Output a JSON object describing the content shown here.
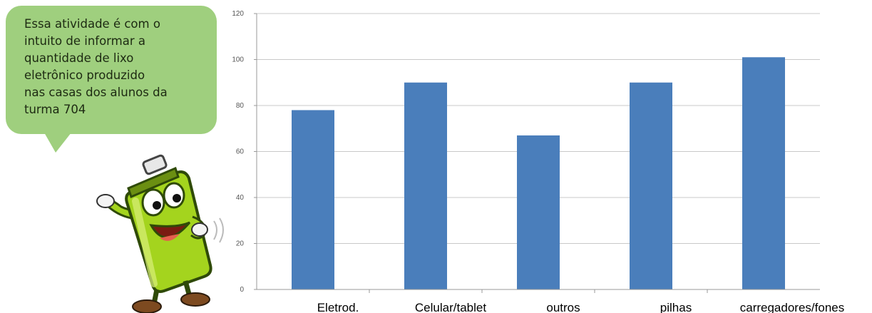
{
  "callout": {
    "lines": [
      "Essa atividade é com o",
      "intuito de informar a",
      "quantidade de lixo",
      "eletrônico produzido",
      "nas casas dos alunos da",
      "turma 704"
    ]
  },
  "mascot": {
    "icon": "battery-mascot-icon",
    "body_color": "#a4d41e",
    "outline_color": "#2f4a08"
  },
  "chart_data": {
    "type": "bar",
    "categories": [
      "Eletrod.",
      "Celular/tablet",
      "outros",
      "pilhas",
      "carregadores/fones"
    ],
    "values": [
      78,
      90,
      67,
      90,
      101
    ],
    "ylim": [
      0,
      120
    ],
    "yticks": [
      0,
      20,
      40,
      60,
      80,
      100,
      120
    ],
    "grid": true,
    "bar_color": "#4a7ebb",
    "grid_color": "#c9c9c9"
  }
}
